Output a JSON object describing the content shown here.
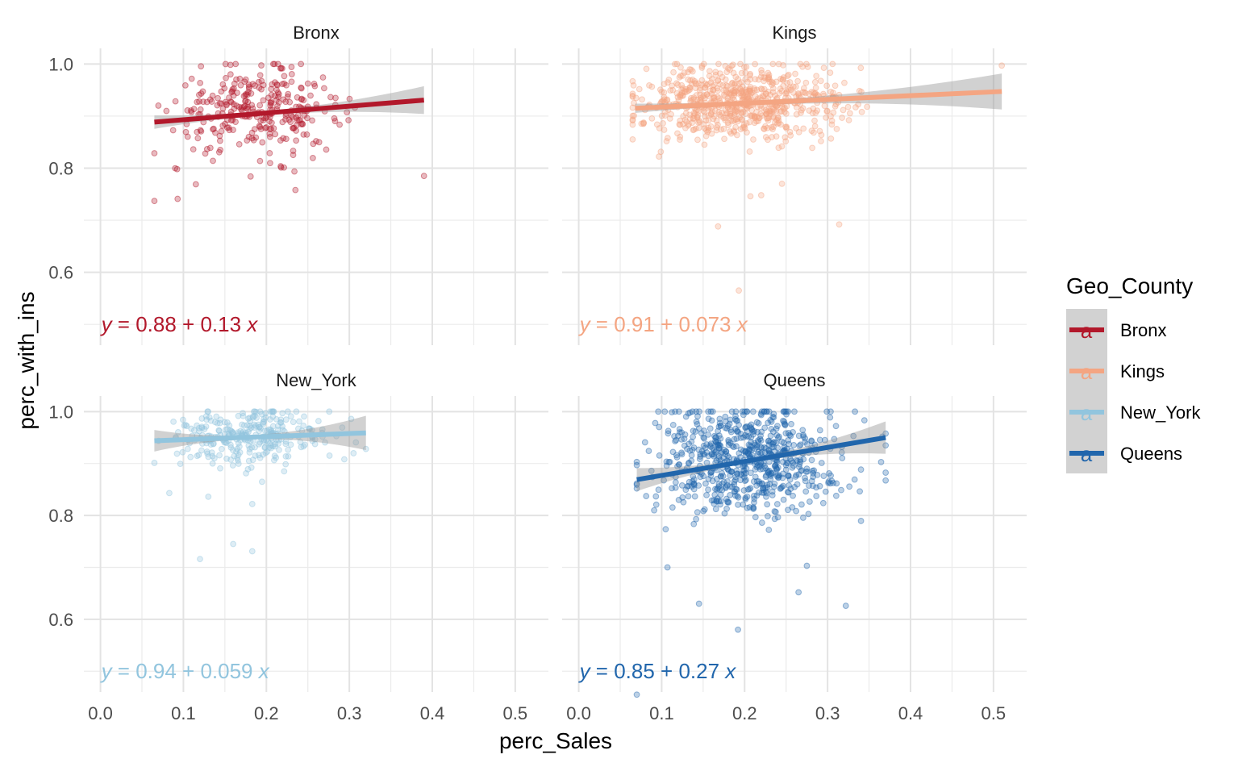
{
  "chart_data": {
    "type": "scatter",
    "facet_by": "Geo_County",
    "xlabel": "perc_Sales",
    "ylabel": "perc_with_ins",
    "xlim": [
      -0.02,
      0.54
    ],
    "ylim": [
      0.46,
      1.03
    ],
    "x_ticks": [
      0.0,
      0.1,
      0.2,
      0.3,
      0.4,
      0.5
    ],
    "x_tick_labels": [
      "0.0",
      "0.1",
      "0.2",
      "0.3",
      "0.4",
      "0.5"
    ],
    "y_ticks": [
      0.6,
      0.8,
      1.0
    ],
    "y_tick_labels": [
      "0.6",
      "0.8",
      "1.0"
    ],
    "grid": true,
    "legend": {
      "title": "Geo_County",
      "position": "right",
      "key_glyph": "a",
      "entries": [
        "Bronx",
        "Kings",
        "New_York",
        "Queens"
      ]
    },
    "panels": [
      {
        "name": "Bronx",
        "color": "#b2182b",
        "point_opacity": 0.3,
        "n_points": 300,
        "x_mean": 0.19,
        "x_sd": 0.05,
        "y_mean": 0.91,
        "y_sd": 0.04,
        "x_range": [
          0.065,
          0.39
        ],
        "fit": {
          "intercept": 0.88,
          "slope": 0.13,
          "x_range": [
            0.065,
            0.39
          ]
        },
        "equation": {
          "lhs": "y",
          "eq": " = ",
          "intercept": "0.88",
          "plus": " + ",
          "slope": "0.13",
          "var": "x"
        },
        "outliers": [
          [
            0.065,
            0.737
          ],
          [
            0.093,
            0.741
          ],
          [
            0.39,
            0.785
          ],
          [
            0.235,
            0.758
          ],
          [
            0.115,
            0.769
          ],
          [
            0.181,
            0.784
          ]
        ]
      },
      {
        "name": "Kings",
        "color": "#f4a582",
        "point_opacity": 0.3,
        "n_points": 700,
        "x_mean": 0.195,
        "x_sd": 0.06,
        "y_mean": 0.925,
        "y_sd": 0.035,
        "x_range": [
          0.065,
          0.51
        ],
        "fit": {
          "intercept": 0.91,
          "slope": 0.073,
          "x_range": [
            0.068,
            0.51
          ]
        },
        "equation": {
          "lhs": "y",
          "eq": " = ",
          "intercept": "0.91",
          "plus": " + ",
          "slope": "0.073",
          "var": "x"
        },
        "outliers": [
          [
            0.193,
            0.565
          ],
          [
            0.168,
            0.688
          ],
          [
            0.314,
            0.692
          ],
          [
            0.207,
            0.746
          ],
          [
            0.22,
            0.748
          ],
          [
            0.51,
            0.997
          ],
          [
            0.245,
            0.77
          ]
        ]
      },
      {
        "name": "New_York",
        "color": "#92c5de",
        "point_opacity": 0.3,
        "n_points": 300,
        "x_mean": 0.175,
        "x_sd": 0.045,
        "y_mean": 0.95,
        "y_sd": 0.03,
        "x_range": [
          0.065,
          0.32
        ],
        "fit": {
          "intercept": 0.94,
          "slope": 0.059,
          "x_range": [
            0.065,
            0.32
          ]
        },
        "equation": {
          "lhs": "y",
          "eq": " = ",
          "intercept": "0.94",
          "plus": " + ",
          "slope": "0.059",
          "var": "x"
        },
        "outliers": [
          [
            0.12,
            0.716
          ],
          [
            0.16,
            0.745
          ],
          [
            0.183,
            0.731
          ],
          [
            0.083,
            0.843
          ],
          [
            0.13,
            0.836
          ],
          [
            0.183,
            0.822
          ],
          [
            0.32,
            0.928
          ]
        ]
      },
      {
        "name": "Queens",
        "color": "#2166ac",
        "point_opacity": 0.3,
        "n_points": 700,
        "x_mean": 0.205,
        "x_sd": 0.055,
        "y_mean": 0.905,
        "y_sd": 0.055,
        "x_range": [
          0.07,
          0.37
        ],
        "fit": {
          "intercept": 0.85,
          "slope": 0.27,
          "x_range": [
            0.07,
            0.37
          ]
        },
        "equation": {
          "lhs": "y",
          "eq": " = ",
          "intercept": "0.85",
          "plus": " + ",
          "slope": "0.27",
          "var": "x"
        },
        "outliers": [
          [
            0.07,
            0.455
          ],
          [
            0.192,
            0.58
          ],
          [
            0.322,
            0.626
          ],
          [
            0.145,
            0.63
          ],
          [
            0.107,
            0.7
          ],
          [
            0.275,
            0.703
          ],
          [
            0.265,
            0.652
          ],
          [
            0.333,
            1.0
          ]
        ]
      }
    ]
  }
}
